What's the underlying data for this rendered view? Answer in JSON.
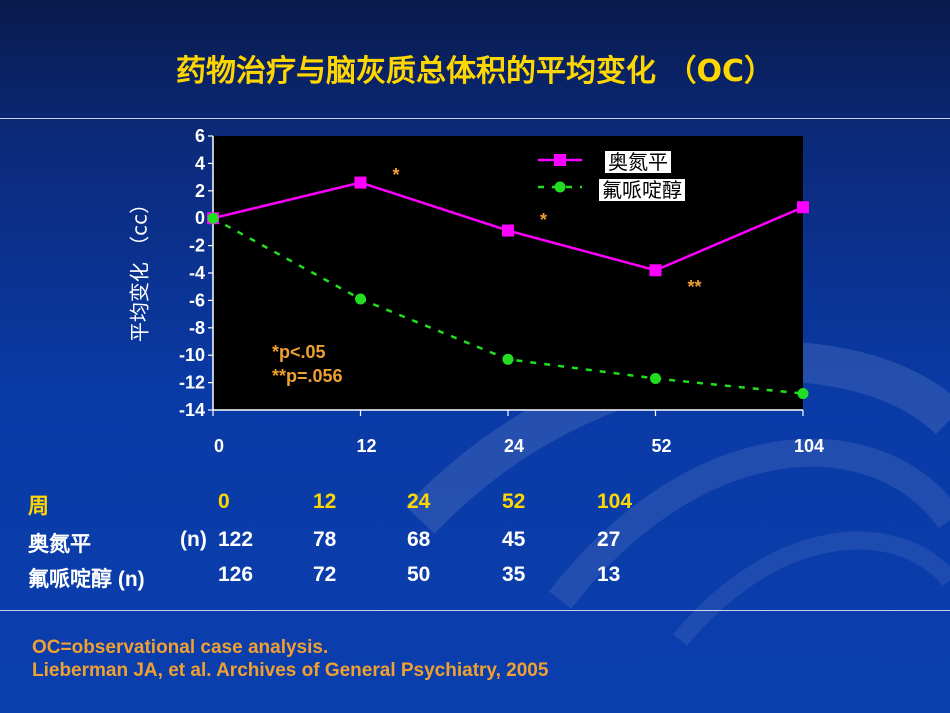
{
  "title": "药物治疗与脑灰质总体积的平均变化 （OC）",
  "chart_data": {
    "type": "line",
    "categories": [
      "0",
      "12",
      "24",
      "52",
      "104"
    ],
    "series": [
      {
        "name": "奥氮平",
        "values": [
          0,
          2.6,
          -0.9,
          -3.8,
          0.8
        ],
        "color": "#ff00ff",
        "marker": "square",
        "style": "solid"
      },
      {
        "name": "氟哌啶醇",
        "values": [
          0,
          -5.9,
          -10.3,
          -11.7,
          -12.8
        ],
        "color": "#22dd22",
        "marker": "circle",
        "style": "dashed"
      }
    ],
    "ylabel": "平均变化 （cc）",
    "ylim": [
      -14,
      6
    ],
    "yticks": [
      "6",
      "4",
      "2",
      "0",
      "-2",
      "-4",
      "-6",
      "-8",
      "-10",
      "-12",
      "-14"
    ],
    "annotations": [
      {
        "text": "*",
        "x_index": 1,
        "y": 3.6
      },
      {
        "text": "*",
        "x_index": 2,
        "y": 0.3
      },
      {
        "text": "**",
        "x_index": 3,
        "y": -4.6
      }
    ],
    "notes": [
      "*p<.05",
      "**p=.056"
    ],
    "legend_position": "top-right"
  },
  "table": {
    "header_label": "周",
    "weeks": [
      "0",
      "12",
      "24",
      "52",
      "104"
    ],
    "rows": [
      {
        "label": "奥氮平",
        "unit": "(n)",
        "values": [
          "122",
          "78",
          "68",
          "45",
          "27"
        ]
      },
      {
        "label": "氟哌啶醇 (n)",
        "unit": "",
        "values": [
          "126",
          "72",
          "50",
          "35",
          "13"
        ]
      }
    ]
  },
  "footer": {
    "line1": "OC=observational case analysis.",
    "line2": "Lieberman JA, et al. Archives of General Psychiatry, 2005"
  }
}
